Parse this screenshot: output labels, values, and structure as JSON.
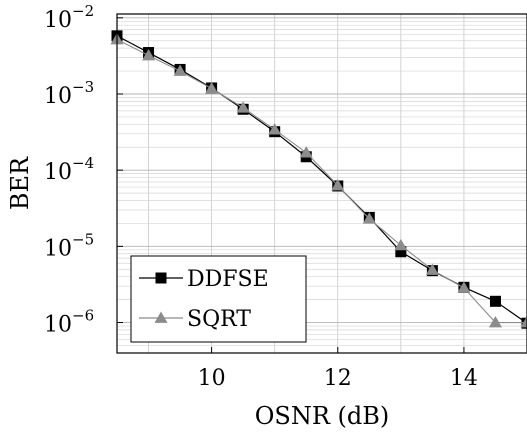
{
  "chart_data": {
    "type": "line",
    "xlabel": "OSNR (dB)",
    "ylabel": "BER",
    "xlim": [
      8.5,
      15
    ],
    "ylim_log10": [
      -6.4,
      -1.95
    ],
    "y_scale": "log",
    "grid": true,
    "legend_position": "bottom-left",
    "x_ticks": [
      {
        "value": 10,
        "label": "10"
      },
      {
        "value": 12,
        "label": "12"
      },
      {
        "value": 14,
        "label": "14"
      }
    ],
    "y_ticks": [
      {
        "exp": -2,
        "base": "10",
        "power": "−2"
      },
      {
        "exp": -3,
        "base": "10",
        "power": "−3"
      },
      {
        "exp": -4,
        "base": "10",
        "power": "−4"
      },
      {
        "exp": -5,
        "base": "10",
        "power": "−5"
      },
      {
        "exp": -6,
        "base": "10",
        "power": "−6"
      }
    ],
    "series": [
      {
        "name": "DDFSE",
        "color": "#000000",
        "marker": "square",
        "x": [
          8.5,
          9,
          9.5,
          10,
          10.5,
          11,
          11.5,
          12,
          12.5,
          13,
          13.5,
          14,
          14.5,
          15
        ],
        "y": [
          0.0058,
          0.0035,
          0.0021,
          0.0012,
          0.00063,
          0.00032,
          0.00015,
          6.2e-05,
          2.4e-05,
          8.5e-06,
          4.8e-06,
          2.9e-06,
          1.9e-06,
          9.8e-07
        ]
      },
      {
        "name": "SQRT",
        "color": "#8c8c8c",
        "marker": "triangle",
        "x": [
          8.5,
          9,
          9.5,
          10,
          10.5,
          11,
          11.5,
          12,
          12.5,
          13,
          13.5,
          14,
          14.5,
          15
        ],
        "y": [
          0.0052,
          0.0032,
          0.002,
          0.00118,
          0.00066,
          0.00034,
          0.00017,
          6.3e-05,
          2.3e-05,
          1.03e-05,
          4.9e-06,
          2.85e-06,
          1e-06,
          1e-06
        ]
      }
    ]
  }
}
